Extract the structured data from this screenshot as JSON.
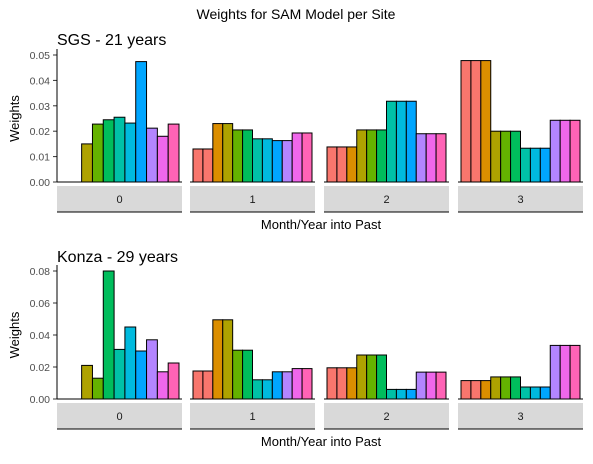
{
  "title": "Weights for SAM Model per Site",
  "bar_colors": [
    "#F8766D",
    "#DB8E00",
    "#AEA200",
    "#64B200",
    "#00BD5C",
    "#00C1A7",
    "#00BADE",
    "#00A6FF",
    "#B385FF",
    "#EF67EB",
    "#FF63B6"
  ],
  "chart_data": [
    {
      "type": "bar",
      "title": "SGS - 21 years",
      "xlabel": "Month/Year into Past",
      "ylabel": "Weights",
      "ylim": [
        0,
        0.05
      ],
      "yticks": [
        "0.00",
        "0.01",
        "0.02",
        "0.03",
        "0.04",
        "0.05"
      ],
      "ytick_values": [
        0,
        0.01,
        0.02,
        0.03,
        0.04,
        0.05
      ],
      "facets": [
        {
          "label": "0",
          "values": [
            0,
            0,
            0.015,
            0.0228,
            0.0245,
            0.0255,
            0.0232,
            0.0474,
            0.0212,
            0.018,
            0.0228
          ]
        },
        {
          "label": "1",
          "values": [
            0.013,
            0.013,
            0.023,
            0.023,
            0.0205,
            0.0205,
            0.017,
            0.017,
            0.0163,
            0.0163,
            0.0193,
            0.0193
          ]
        },
        {
          "label": "2",
          "values": [
            0.0138,
            0.0138,
            0.0138,
            0.0205,
            0.0205,
            0.0205,
            0.0318,
            0.0318,
            0.0318,
            0.019,
            0.019,
            0.019
          ]
        },
        {
          "label": "3",
          "values": [
            0.0478,
            0.0478,
            0.0478,
            0.02,
            0.02,
            0.02,
            0.0133,
            0.0133,
            0.0133,
            0.0243,
            0.0243,
            0.0243
          ]
        }
      ]
    },
    {
      "type": "bar",
      "title": "Konza - 29 years",
      "xlabel": "Month/Year into Past",
      "ylabel": "Weights",
      "ylim": [
        0,
        0.08
      ],
      "yticks": [
        "0.00",
        "0.02",
        "0.04",
        "0.06",
        "0.08"
      ],
      "ytick_values": [
        0,
        0.02,
        0.04,
        0.06,
        0.08
      ],
      "facets": [
        {
          "label": "0",
          "values": [
            0,
            0,
            0.021,
            0.013,
            0.08,
            0.031,
            0.045,
            0.03,
            0.037,
            0.017,
            0.0225
          ]
        },
        {
          "label": "1",
          "values": [
            0.0175,
            0.0175,
            0.0495,
            0.0495,
            0.0305,
            0.0305,
            0.012,
            0.012,
            0.017,
            0.017,
            0.019,
            0.019
          ]
        },
        {
          "label": "2",
          "values": [
            0.0195,
            0.0195,
            0.0195,
            0.0275,
            0.0275,
            0.0275,
            0.006,
            0.006,
            0.006,
            0.0168,
            0.0168,
            0.0168
          ]
        },
        {
          "label": "3",
          "values": [
            0.0115,
            0.0115,
            0.0115,
            0.0138,
            0.0138,
            0.0138,
            0.0075,
            0.0075,
            0.0075,
            0.0335,
            0.0335,
            0.0335
          ]
        }
      ]
    }
  ]
}
